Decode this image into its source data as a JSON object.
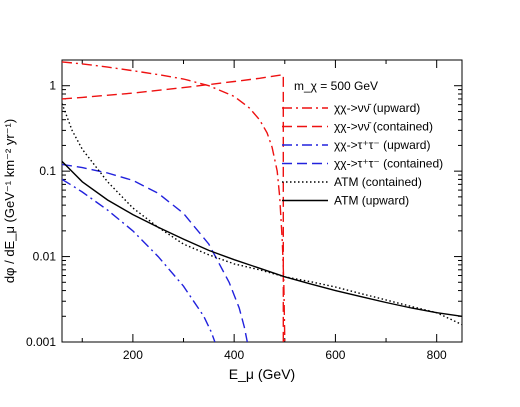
{
  "chart_data": {
    "type": "line",
    "title": "",
    "xlabel": "E_μ (GeV)",
    "ylabel": "dφ / dE_μ (GeV⁻¹ km⁻² yr⁻¹)",
    "xlim": [
      60,
      850
    ],
    "ylim": [
      0.001,
      2
    ],
    "yscale": "log",
    "x_ticks": [
      200,
      400,
      600,
      800
    ],
    "y_ticks": [
      0.001,
      0.01,
      0.1,
      1
    ],
    "x_tick_labels": [
      "200",
      "400",
      "600",
      "800"
    ],
    "y_tick_labels": [
      "0.001",
      "0.01",
      "0.1",
      "1"
    ],
    "grid": false,
    "legend_position": "top-right",
    "legend_title": "m_χ = 500 GeV",
    "series": [
      {
        "name": "χχ->νν̄ (upward)",
        "color": "#ee1111",
        "dash": "dash-dot",
        "points": [
          [
            60,
            1.9
          ],
          [
            100,
            1.8
          ],
          [
            150,
            1.65
          ],
          [
            200,
            1.5
          ],
          [
            250,
            1.35
          ],
          [
            300,
            1.2
          ],
          [
            350,
            1.0
          ],
          [
            400,
            0.75
          ],
          [
            430,
            0.55
          ],
          [
            450,
            0.4
          ],
          [
            465,
            0.28
          ],
          [
            475,
            0.19
          ],
          [
            485,
            0.1
          ],
          [
            490,
            0.05
          ],
          [
            495,
            0.015
          ],
          [
            498,
            0.005
          ],
          [
            500,
            0.001
          ]
        ]
      },
      {
        "name": "χχ->νν̄ (contained)",
        "color": "#ee1111",
        "dash": "dashed",
        "points": [
          [
            60,
            0.7
          ],
          [
            100,
            0.73
          ],
          [
            200,
            0.82
          ],
          [
            300,
            0.95
          ],
          [
            400,
            1.12
          ],
          [
            450,
            1.22
          ],
          [
            497,
            1.35
          ],
          [
            497,
            0.001
          ]
        ]
      },
      {
        "name": "χχ->τ⁺τ⁻ (upward)",
        "color": "#2222dd",
        "dash": "dash-dot",
        "points": [
          [
            60,
            0.08
          ],
          [
            80,
            0.068
          ],
          [
            100,
            0.057
          ],
          [
            150,
            0.035
          ],
          [
            200,
            0.02
          ],
          [
            250,
            0.01
          ],
          [
            300,
            0.0045
          ],
          [
            320,
            0.003
          ],
          [
            340,
            0.002
          ],
          [
            355,
            0.0013
          ],
          [
            362,
            0.001
          ]
        ]
      },
      {
        "name": "χχ->τ⁺τ⁻ (contained)",
        "color": "#2222dd",
        "dash": "dashed",
        "points": [
          [
            60,
            0.12
          ],
          [
            100,
            0.11
          ],
          [
            150,
            0.095
          ],
          [
            200,
            0.078
          ],
          [
            250,
            0.055
          ],
          [
            300,
            0.032
          ],
          [
            350,
            0.014
          ],
          [
            390,
            0.005
          ],
          [
            410,
            0.0025
          ],
          [
            420,
            0.0015
          ],
          [
            426,
            0.001
          ]
        ]
      },
      {
        "name": "ATM (contained)",
        "color": "#000000",
        "dash": "dotted",
        "points": [
          [
            60,
            0.62
          ],
          [
            80,
            0.3
          ],
          [
            100,
            0.18
          ],
          [
            150,
            0.075
          ],
          [
            200,
            0.037
          ],
          [
            250,
            0.022
          ],
          [
            300,
            0.014
          ],
          [
            350,
            0.0105
          ],
          [
            400,
            0.0082
          ],
          [
            450,
            0.007
          ],
          [
            500,
            0.0058
          ],
          [
            550,
            0.0051
          ],
          [
            600,
            0.0044
          ],
          [
            650,
            0.0037
          ],
          [
            700,
            0.0031
          ],
          [
            750,
            0.0026
          ],
          [
            800,
            0.0022
          ],
          [
            850,
            0.0016
          ]
        ]
      },
      {
        "name": "ATM (upward)",
        "color": "#000000",
        "dash": "solid",
        "points": [
          [
            60,
            0.13
          ],
          [
            100,
            0.075
          ],
          [
            150,
            0.046
          ],
          [
            200,
            0.031
          ],
          [
            250,
            0.022
          ],
          [
            300,
            0.016
          ],
          [
            350,
            0.0118
          ],
          [
            400,
            0.0092
          ],
          [
            450,
            0.0073
          ],
          [
            500,
            0.0058
          ],
          [
            550,
            0.0048
          ],
          [
            600,
            0.004
          ],
          [
            650,
            0.0034
          ],
          [
            700,
            0.0029
          ],
          [
            750,
            0.0025
          ],
          [
            800,
            0.0022
          ],
          [
            850,
            0.002
          ]
        ]
      }
    ]
  }
}
